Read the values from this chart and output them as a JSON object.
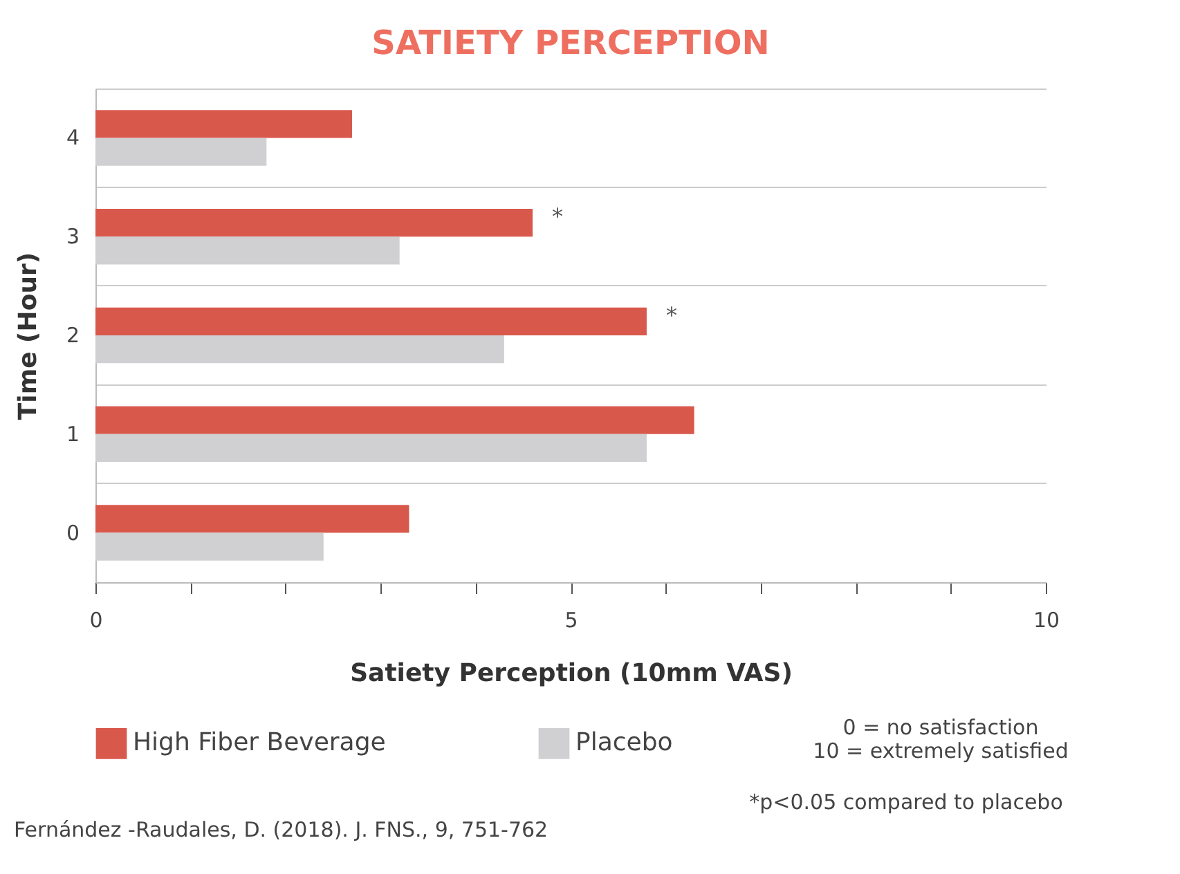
{
  "chart_data": {
    "type": "bar",
    "orientation": "horizontal",
    "title": "SATIETY PERCEPTION",
    "xlabel": "Satiety Perception (10mm VAS)",
    "ylabel": "Time (Hour)",
    "categories": [
      "4",
      "3",
      "2",
      "1",
      "0"
    ],
    "series": [
      {
        "name": "High Fiber Beverage",
        "color": "#d9584c",
        "values": [
          2.7,
          4.6,
          5.8,
          6.3,
          3.3
        ]
      },
      {
        "name": "Placebo",
        "color": "#d0d0d2",
        "values": [
          1.8,
          3.2,
          4.3,
          5.8,
          2.4
        ]
      }
    ],
    "xlim": [
      0,
      10
    ],
    "xticks": [
      0,
      {
        "value": 1,
        "label": null
      },
      {
        "value": 2,
        "label": null
      },
      {
        "value": 3,
        "label": null
      },
      {
        "value": 4,
        "label": null
      },
      5,
      {
        "value": 6,
        "label": null
      },
      {
        "value": 7,
        "label": null
      },
      {
        "value": 8,
        "label": null
      },
      {
        "value": 9,
        "label": null
      },
      10
    ],
    "grid": "y",
    "legend": "bottom",
    "annotations": [
      {
        "text": "*",
        "x": 4.6,
        "y": "3"
      },
      {
        "text": "*",
        "x": 5.8,
        "y": "2"
      },
      "0 = no satisfaction",
      "10 = extremely satisfied",
      "*p<0.05 compared to placebo",
      "Fernández -Raudales, D. (2018). J. FNS., 9, 751-762"
    ]
  }
}
